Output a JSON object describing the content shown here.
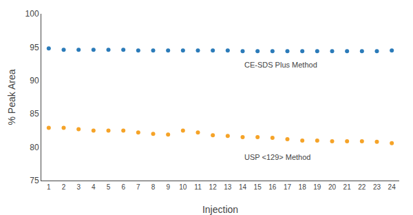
{
  "chart_data": {
    "type": "scatter",
    "marker": "circle",
    "x": [
      1,
      2,
      3,
      4,
      5,
      6,
      7,
      8,
      9,
      10,
      11,
      12,
      13,
      14,
      15,
      16,
      17,
      18,
      19,
      20,
      21,
      22,
      23,
      24
    ],
    "series": [
      {
        "color": "#2b7bb9",
        "values": [
          94.8,
          94.6,
          94.6,
          94.6,
          94.6,
          94.6,
          94.5,
          94.5,
          94.5,
          94.5,
          94.5,
          94.5,
          94.5,
          94.4,
          94.4,
          94.4,
          94.4,
          94.4,
          94.4,
          94.4,
          94.4,
          94.4,
          94.4,
          94.5
        ]
      },
      {
        "color": "#f5a328",
        "values": [
          82.9,
          82.9,
          82.7,
          82.5,
          82.5,
          82.5,
          82.2,
          82.0,
          81.9,
          82.5,
          82.2,
          81.8,
          81.7,
          81.5,
          81.5,
          81.4,
          81.2,
          81.0,
          81.0,
          80.9,
          80.9,
          80.9,
          80.8,
          80.6
        ]
      }
    ],
    "xlabel": "Injection",
    "ylabel": "% Peak Area",
    "xlim": [
      0.5,
      24.5
    ],
    "xticks": [
      1,
      2,
      3,
      4,
      5,
      6,
      7,
      8,
      9,
      10,
      11,
      12,
      13,
      14,
      15,
      16,
      17,
      18,
      19,
      20,
      21,
      22,
      23,
      24
    ],
    "ylim": [
      75,
      100
    ],
    "yticks": [
      75,
      80,
      85,
      90,
      95,
      100
    ],
    "grid": false,
    "annotations": [
      {
        "text": "CE-SDS Plus Method",
        "x": 14,
        "y": 93.2
      },
      {
        "text": "USP <129> Method",
        "x": 14,
        "y": 79.3
      }
    ]
  }
}
